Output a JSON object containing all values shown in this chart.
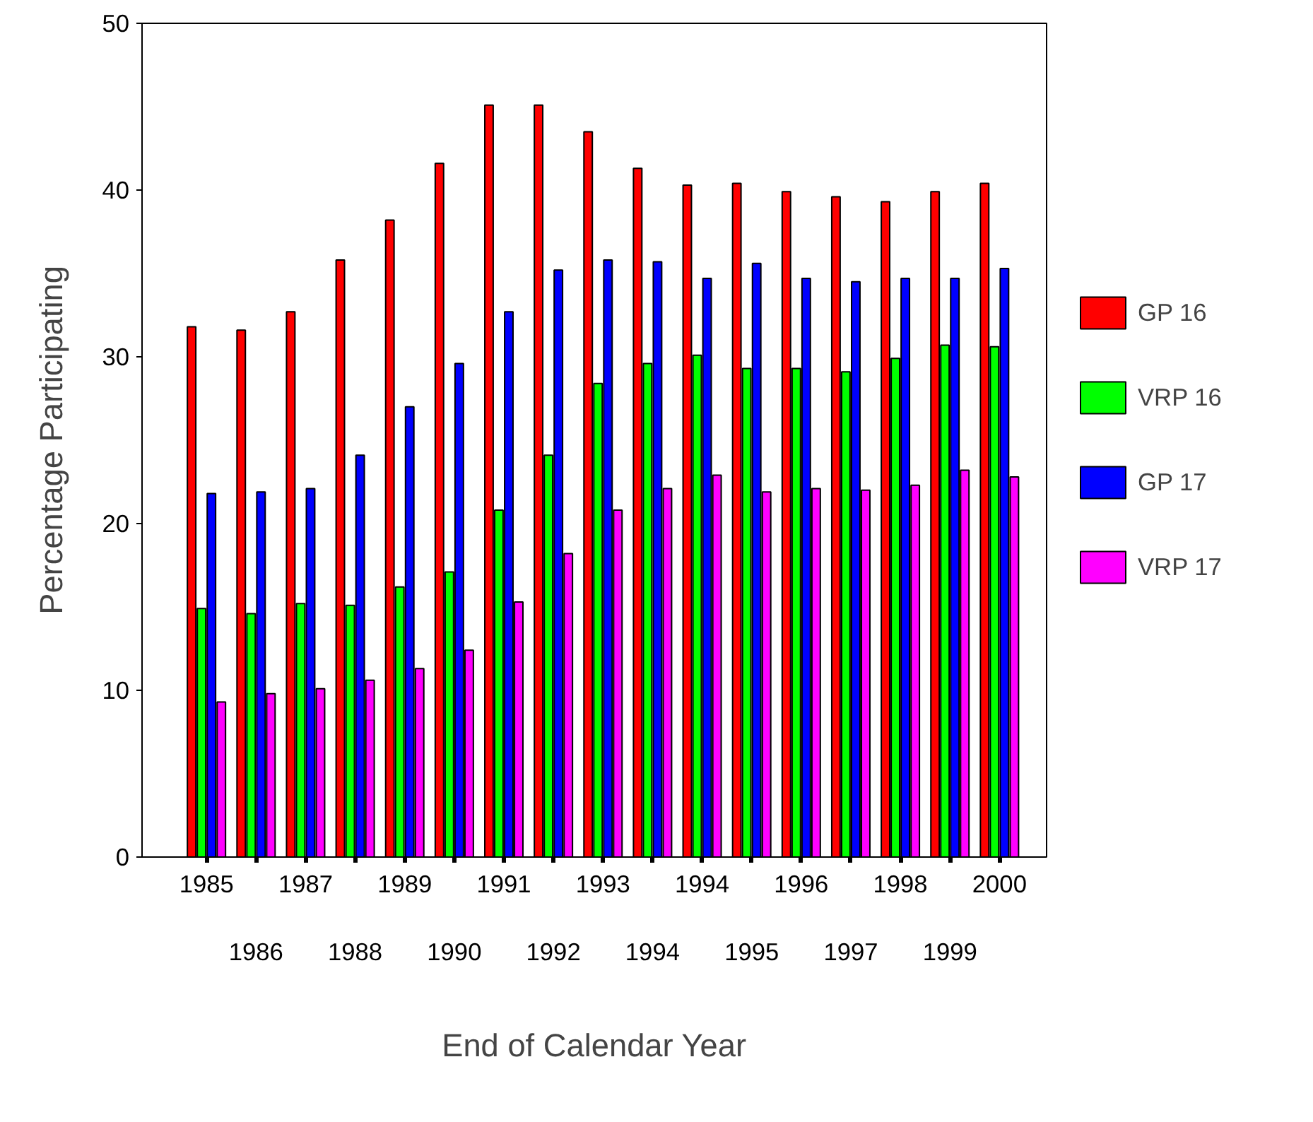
{
  "chart_data": {
    "type": "bar",
    "xlabel": "End of Calendar Year",
    "ylabel": "Percentage Participating",
    "categories": [
      "1985",
      "1986",
      "1987",
      "1988",
      "1989",
      "1990",
      "1991",
      "1992",
      "1993",
      "1994",
      "1994",
      "1995",
      "1996",
      "1997",
      "1998",
      "1999",
      "2000"
    ],
    "series": [
      {
        "name": "GP 16",
        "color": "#ff0000",
        "values": [
          31.8,
          31.6,
          32.7,
          35.8,
          38.2,
          41.6,
          45.1,
          45.1,
          43.5,
          41.3,
          40.3,
          40.4,
          39.9,
          39.6,
          39.3,
          39.9,
          40.4
        ]
      },
      {
        "name": "VRP 16",
        "color": "#00ff00",
        "values": [
          14.9,
          14.6,
          15.2,
          15.1,
          16.2,
          17.1,
          20.8,
          24.1,
          28.4,
          29.6,
          30.1,
          29.3,
          29.3,
          29.1,
          29.9,
          30.7,
          30.6
        ]
      },
      {
        "name": "GP 17",
        "color": "#0000ff",
        "values": [
          21.8,
          21.9,
          22.1,
          24.1,
          27.0,
          29.6,
          32.7,
          35.2,
          35.8,
          35.7,
          34.7,
          35.6,
          34.7,
          34.5,
          34.7,
          34.7,
          35.3
        ]
      },
      {
        "name": "VRP 17",
        "color": "#ff00ff",
        "values": [
          9.3,
          9.8,
          10.1,
          10.6,
          11.3,
          12.4,
          15.3,
          18.2,
          20.8,
          22.1,
          22.9,
          21.9,
          22.1,
          22.0,
          22.3,
          23.2,
          22.8
        ]
      }
    ],
    "ylim": [
      0,
      50
    ],
    "yticks": [
      0,
      10,
      20,
      30,
      40,
      50
    ],
    "legend": "right"
  }
}
